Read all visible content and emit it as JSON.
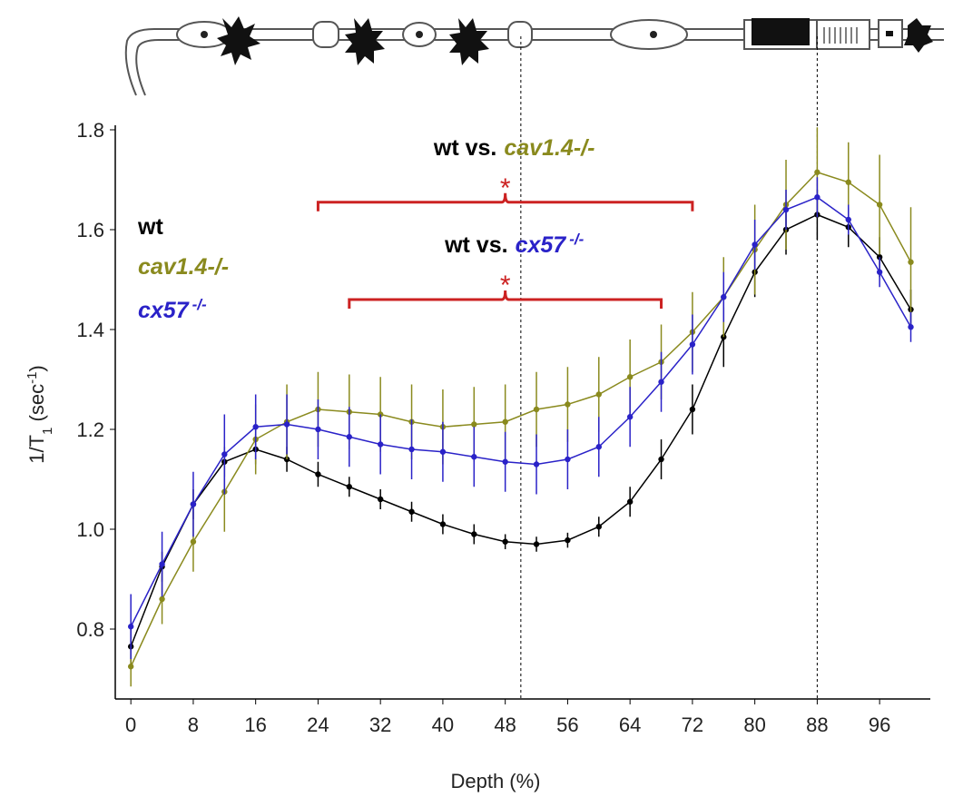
{
  "chart_data": {
    "type": "line",
    "x_label": "Depth (%)",
    "y_label": {
      "text": "1/T",
      "sub": "1",
      "rest": " (sec",
      "sup": "-1",
      "end": ")"
    },
    "x": [
      0,
      4,
      8,
      12,
      16,
      20,
      24,
      28,
      32,
      36,
      40,
      44,
      48,
      52,
      56,
      60,
      64,
      68,
      72,
      76,
      80,
      84,
      88,
      92,
      96,
      100
    ],
    "series": [
      {
        "name": "wt",
        "color": "#000000",
        "values": [
          0.765,
          0.925,
          1.05,
          1.135,
          1.16,
          1.14,
          1.11,
          1.085,
          1.06,
          1.035,
          1.01,
          0.99,
          0.975,
          0.97,
          0.978,
          1.005,
          1.055,
          1.14,
          1.24,
          1.385,
          1.515,
          1.6,
          1.63,
          1.605,
          1.545,
          1.44
        ],
        "errors": [
          0.04,
          0.03,
          0.03,
          0.03,
          0.03,
          0.025,
          0.025,
          0.02,
          0.02,
          0.02,
          0.02,
          0.02,
          0.015,
          0.015,
          0.015,
          0.02,
          0.03,
          0.04,
          0.05,
          0.06,
          0.05,
          0.05,
          0.05,
          0.04,
          0.04,
          0.04
        ]
      },
      {
        "name": "cav1.4-/-",
        "color": "#8a8a1e",
        "values": [
          0.725,
          0.86,
          0.975,
          1.075,
          1.18,
          1.215,
          1.24,
          1.235,
          1.23,
          1.215,
          1.205,
          1.21,
          1.215,
          1.24,
          1.25,
          1.27,
          1.305,
          1.335,
          1.395,
          1.465,
          1.56,
          1.65,
          1.715,
          1.695,
          1.65,
          1.535
        ],
        "errors": [
          0.04,
          0.05,
          0.06,
          0.08,
          0.07,
          0.075,
          0.075,
          0.075,
          0.075,
          0.075,
          0.075,
          0.075,
          0.075,
          0.075,
          0.075,
          0.075,
          0.075,
          0.075,
          0.08,
          0.08,
          0.09,
          0.09,
          0.09,
          0.08,
          0.1,
          0.11
        ]
      },
      {
        "name": "cx57",
        "name_superscript": "-/-",
        "color": "#2a22c8",
        "values": [
          0.805,
          0.93,
          1.05,
          1.15,
          1.205,
          1.21,
          1.2,
          1.185,
          1.17,
          1.16,
          1.155,
          1.145,
          1.135,
          1.13,
          1.14,
          1.165,
          1.225,
          1.295,
          1.37,
          1.465,
          1.57,
          1.64,
          1.665,
          1.62,
          1.515,
          1.405
        ],
        "errors": [
          0.065,
          0.065,
          0.065,
          0.08,
          0.065,
          0.06,
          0.06,
          0.06,
          0.06,
          0.06,
          0.06,
          0.06,
          0.06,
          0.06,
          0.06,
          0.06,
          0.06,
          0.06,
          0.06,
          0.05,
          0.05,
          0.04,
          0.04,
          0.03,
          0.03,
          0.03
        ]
      }
    ],
    "comparisons": [
      {
        "prefix": "wt vs.",
        "series": 1,
        "star": "*",
        "x": [
          24,
          72
        ],
        "center": 48,
        "y": 1.655
      },
      {
        "prefix": "wt vs.",
        "series": 2,
        "star": "*",
        "x": [
          28,
          68
        ],
        "center": 48,
        "y": 1.46
      }
    ],
    "vlines": [
      50,
      88
    ],
    "xlim": [
      -2,
      102.5
    ],
    "ylim": [
      0.66,
      1.8
    ],
    "xticks": [
      0,
      8,
      16,
      24,
      32,
      40,
      48,
      56,
      64,
      72,
      80,
      88,
      96
    ],
    "yticks": [
      0.8,
      {
        "value": 1,
        "label": "1.0"
      },
      1.2,
      1.4,
      1.6,
      1.8
    ]
  }
}
